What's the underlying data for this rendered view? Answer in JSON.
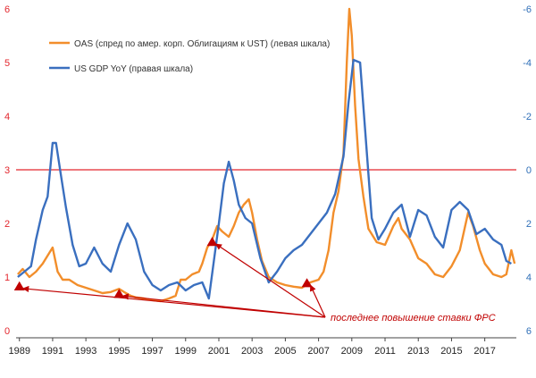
{
  "chart_data": {
    "type": "line",
    "title": "",
    "xlabel": "",
    "ylabel": "",
    "x_ticks": [
      "1989",
      "1991",
      "1993",
      "1995",
      "1997",
      "1999",
      "2001",
      "2003",
      "2005",
      "2007",
      "2009",
      "2011",
      "2013",
      "2015",
      "2017"
    ],
    "x_range": [
      1988.8,
      2018.9
    ],
    "y_left": {
      "range": [
        0,
        6
      ],
      "ticks": [
        "0",
        "1",
        "2",
        "3",
        "4",
        "5",
        "6"
      ]
    },
    "y_right": {
      "range": [
        -6,
        6
      ],
      "inverted": true,
      "ticks": [
        "-6",
        "-4",
        "-2",
        "0",
        "2",
        "4",
        "6"
      ]
    },
    "reference_line": {
      "axis": "left",
      "value": 3.0,
      "color": "#e3262d"
    },
    "colors": {
      "oas": "#f28e2b",
      "gdp": "#3a6fbf",
      "left_axis": "#e3262d",
      "right_axis": "#2f6fb8",
      "marker": "#c00000"
    },
    "legend": {
      "placement": "top-left"
    },
    "series": [
      {
        "name": "OAS (спред по амер. корп. Облигациям к UST) (левая шкала)",
        "axis": "left",
        "points": [
          [
            1988.9,
            1.05
          ],
          [
            1989.2,
            1.15
          ],
          [
            1989.6,
            1.0
          ],
          [
            1990.0,
            1.1
          ],
          [
            1990.4,
            1.25
          ],
          [
            1990.8,
            1.45
          ],
          [
            1991.0,
            1.55
          ],
          [
            1991.3,
            1.1
          ],
          [
            1991.6,
            0.95
          ],
          [
            1992.0,
            0.95
          ],
          [
            1992.5,
            0.85
          ],
          [
            1993.0,
            0.8
          ],
          [
            1993.5,
            0.75
          ],
          [
            1994.0,
            0.7
          ],
          [
            1994.5,
            0.72
          ],
          [
            1995.0,
            0.78
          ],
          [
            1995.3,
            0.72
          ],
          [
            1995.7,
            0.65
          ],
          [
            1996.0,
            0.62
          ],
          [
            1996.5,
            0.6
          ],
          [
            1997.0,
            0.57
          ],
          [
            1997.5,
            0.55
          ],
          [
            1998.0,
            0.6
          ],
          [
            1998.4,
            0.65
          ],
          [
            1998.7,
            0.95
          ],
          [
            1999.0,
            0.95
          ],
          [
            1999.4,
            1.05
          ],
          [
            1999.8,
            1.1
          ],
          [
            2000.0,
            1.25
          ],
          [
            2000.3,
            1.55
          ],
          [
            2000.6,
            1.7
          ],
          [
            2000.9,
            1.95
          ],
          [
            2001.2,
            1.85
          ],
          [
            2001.6,
            1.75
          ],
          [
            2001.9,
            1.95
          ],
          [
            2002.2,
            2.2
          ],
          [
            2002.5,
            2.35
          ],
          [
            2002.8,
            2.45
          ],
          [
            2003.0,
            2.2
          ],
          [
            2003.3,
            1.7
          ],
          [
            2003.6,
            1.3
          ],
          [
            2004.0,
            1.0
          ],
          [
            2004.5,
            0.9
          ],
          [
            2005.0,
            0.85
          ],
          [
            2005.5,
            0.82
          ],
          [
            2006.0,
            0.8
          ],
          [
            2006.5,
            0.9
          ],
          [
            2007.0,
            0.95
          ],
          [
            2007.3,
            1.1
          ],
          [
            2007.6,
            1.5
          ],
          [
            2007.9,
            2.2
          ],
          [
            2008.2,
            2.6
          ],
          [
            2008.5,
            3.3
          ],
          [
            2008.7,
            5.0
          ],
          [
            2008.85,
            6.0
          ],
          [
            2009.0,
            5.5
          ],
          [
            2009.2,
            4.2
          ],
          [
            2009.4,
            3.2
          ],
          [
            2009.7,
            2.5
          ],
          [
            2010.0,
            1.9
          ],
          [
            2010.5,
            1.65
          ],
          [
            2011.0,
            1.6
          ],
          [
            2011.5,
            1.95
          ],
          [
            2011.8,
            2.1
          ],
          [
            2012.0,
            1.9
          ],
          [
            2012.5,
            1.7
          ],
          [
            2013.0,
            1.35
          ],
          [
            2013.5,
            1.25
          ],
          [
            2014.0,
            1.05
          ],
          [
            2014.5,
            1.0
          ],
          [
            2015.0,
            1.2
          ],
          [
            2015.5,
            1.5
          ],
          [
            2016.0,
            2.2
          ],
          [
            2016.3,
            1.95
          ],
          [
            2016.7,
            1.5
          ],
          [
            2017.0,
            1.25
          ],
          [
            2017.5,
            1.05
          ],
          [
            2018.0,
            1.0
          ],
          [
            2018.3,
            1.05
          ],
          [
            2018.6,
            1.5
          ],
          [
            2018.8,
            1.25
          ]
        ]
      },
      {
        "name": "US GDP YoY (правая шкала)",
        "axis": "right",
        "points": [
          [
            1988.9,
            4.0
          ],
          [
            1989.3,
            3.8
          ],
          [
            1989.7,
            3.6
          ],
          [
            1990.0,
            2.6
          ],
          [
            1990.4,
            1.5
          ],
          [
            1990.7,
            1.0
          ],
          [
            1991.0,
            -1.0
          ],
          [
            1991.2,
            -1.0
          ],
          [
            1991.5,
            0.2
          ],
          [
            1991.8,
            1.4
          ],
          [
            1992.2,
            2.8
          ],
          [
            1992.6,
            3.6
          ],
          [
            1993.0,
            3.5
          ],
          [
            1993.5,
            2.9
          ],
          [
            1994.0,
            3.5
          ],
          [
            1994.5,
            3.8
          ],
          [
            1995.0,
            2.8
          ],
          [
            1995.5,
            2.0
          ],
          [
            1996.0,
            2.6
          ],
          [
            1996.5,
            3.8
          ],
          [
            1997.0,
            4.3
          ],
          [
            1997.5,
            4.5
          ],
          [
            1998.0,
            4.3
          ],
          [
            1998.5,
            4.2
          ],
          [
            1999.0,
            4.5
          ],
          [
            1999.5,
            4.3
          ],
          [
            2000.0,
            4.2
          ],
          [
            2000.4,
            4.8
          ],
          [
            2000.7,
            3.4
          ],
          [
            2001.0,
            2.0
          ],
          [
            2001.3,
            0.5
          ],
          [
            2001.6,
            -0.3
          ],
          [
            2001.9,
            0.4
          ],
          [
            2002.2,
            1.3
          ],
          [
            2002.6,
            1.8
          ],
          [
            2003.0,
            2.0
          ],
          [
            2003.5,
            3.3
          ],
          [
            2004.0,
            4.2
          ],
          [
            2004.5,
            3.8
          ],
          [
            2005.0,
            3.3
          ],
          [
            2005.5,
            3.0
          ],
          [
            2006.0,
            2.8
          ],
          [
            2006.5,
            2.4
          ],
          [
            2007.0,
            2.0
          ],
          [
            2007.5,
            1.6
          ],
          [
            2008.0,
            0.9
          ],
          [
            2008.5,
            -0.5
          ],
          [
            2008.8,
            -2.5
          ],
          [
            2009.1,
            -4.1
          ],
          [
            2009.5,
            -4.0
          ],
          [
            2009.8,
            -1.5
          ],
          [
            2010.2,
            1.8
          ],
          [
            2010.6,
            2.6
          ],
          [
            2011.0,
            2.2
          ],
          [
            2011.5,
            1.6
          ],
          [
            2012.0,
            1.3
          ],
          [
            2012.5,
            2.5
          ],
          [
            2013.0,
            1.5
          ],
          [
            2013.5,
            1.7
          ],
          [
            2014.0,
            2.5
          ],
          [
            2014.5,
            2.9
          ],
          [
            2015.0,
            1.5
          ],
          [
            2015.5,
            1.2
          ],
          [
            2016.0,
            1.5
          ],
          [
            2016.5,
            2.4
          ],
          [
            2017.0,
            2.2
          ],
          [
            2017.5,
            2.6
          ],
          [
            2018.0,
            2.8
          ],
          [
            2018.3,
            3.4
          ],
          [
            2018.6,
            3.5
          ]
        ]
      }
    ],
    "annotation": {
      "text": "последнее повышение ставки ФРС",
      "text_anchor": [
        2007.4,
        0.25
      ],
      "markers": [
        [
          1989.0,
          0.82
        ],
        [
          1995.0,
          0.68
        ],
        [
          2000.6,
          1.65
        ],
        [
          2006.3,
          0.88
        ]
      ]
    }
  }
}
